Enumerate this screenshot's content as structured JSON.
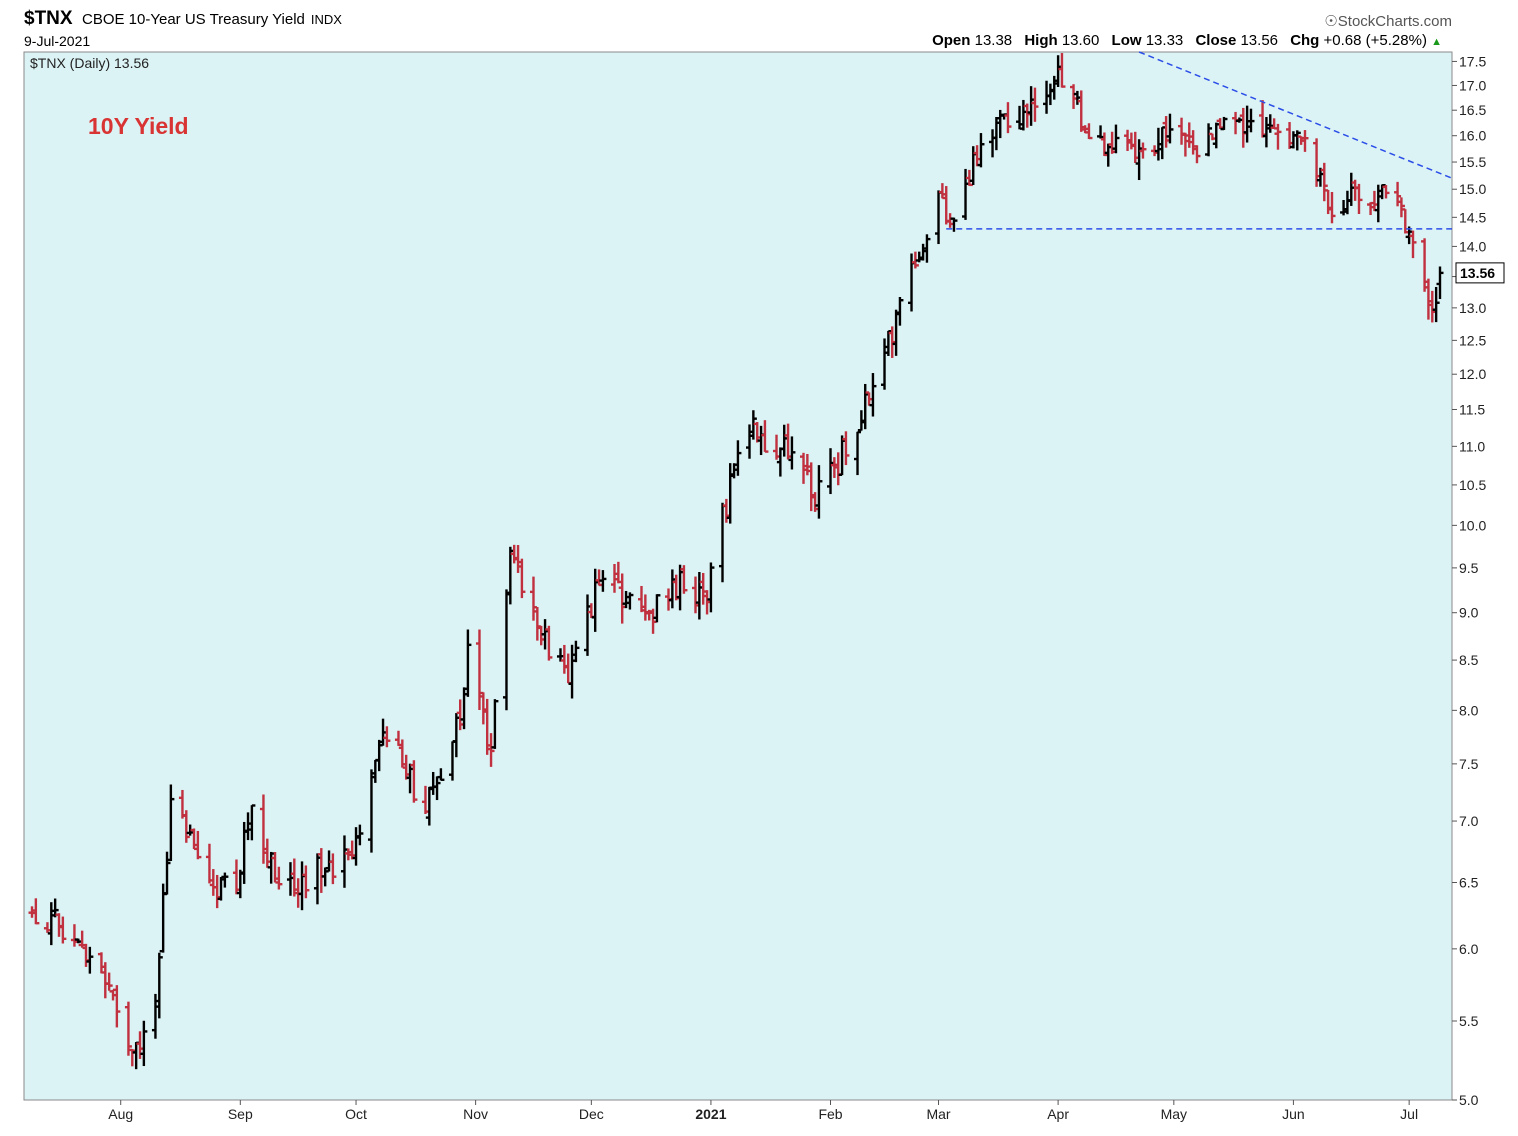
{
  "header": {
    "symbol": "$TNX",
    "description": "CBOE 10-Year US Treasury Yield",
    "exchange": "INDX",
    "date": "9-Jul-2021",
    "brand": "StockCharts.com",
    "open_label": "Open",
    "open": "13.38",
    "high_label": "High",
    "high": "13.60",
    "low_label": "Low",
    "low": "13.33",
    "close_label": "Close",
    "close": "13.56",
    "chg_label": "Chg",
    "chg": "+0.68 (+5.28%)"
  },
  "legend": "$TNX (Daily) 13.56",
  "annotation": "10Y Yield",
  "colors": {
    "background": "#dcf3f5",
    "up": "#000000",
    "down": "#c0303f",
    "trendline": "#2b4ee8",
    "annotation": "#d93434"
  },
  "chart_data": {
    "type": "ohlc",
    "title": "$TNX CBOE 10-Year US Treasury Yield",
    "scale": "log",
    "ylim": [
      5.0,
      17.7
    ],
    "y_ticks": [
      "5.0",
      "5.5",
      "6.0",
      "6.5",
      "7.0",
      "7.5",
      "8.0",
      "8.5",
      "9.0",
      "9.5",
      "10.0",
      "10.5",
      "11.0",
      "11.5",
      "12.0",
      "12.5",
      "13.0",
      "13.5",
      "14.0",
      "14.5",
      "15.0",
      "15.5",
      "16.0",
      "16.5",
      "17.0",
      "17.5"
    ],
    "x_ticks": [
      "Aug",
      "Sep",
      "Oct",
      "Nov",
      "Dec",
      "2021",
      "Feb",
      "Mar",
      "Apr",
      "May",
      "Jun",
      "Jul"
    ],
    "x_tick_dates": [
      "2020-08-01",
      "2020-09-01",
      "2020-10-01",
      "2020-11-01",
      "2020-12-01",
      "2021-01-01",
      "2021-02-01",
      "2021-03-01",
      "2021-04-01",
      "2021-05-01",
      "2021-06-01",
      "2021-07-01"
    ],
    "date_range": [
      "2020-07-09",
      "2021-07-09"
    ],
    "grid": false,
    "last_value": "13.56",
    "anchors": [
      [
        "2020-07-09",
        6.3
      ],
      [
        "2020-07-20",
        6.1
      ],
      [
        "2020-07-28",
        5.8
      ],
      [
        "2020-08-03",
        5.25
      ],
      [
        "2020-08-10",
        5.6
      ],
      [
        "2020-08-14",
        7.1
      ],
      [
        "2020-08-25",
        6.5
      ],
      [
        "2020-08-31",
        6.5
      ],
      [
        "2020-09-04",
        7.2
      ],
      [
        "2020-09-11",
        6.4
      ],
      [
        "2020-09-22",
        6.6
      ],
      [
        "2020-09-30",
        6.7
      ],
      [
        "2020-10-09",
        7.8
      ],
      [
        "2020-10-19",
        7.1
      ],
      [
        "2020-10-28",
        7.9
      ],
      [
        "2020-10-30",
        8.7
      ],
      [
        "2020-11-03",
        7.9
      ],
      [
        "2020-11-05",
        7.6
      ],
      [
        "2020-11-10",
        9.6
      ],
      [
        "2020-11-16",
        8.9
      ],
      [
        "2020-11-25",
        8.4
      ],
      [
        "2020-12-04",
        9.4
      ],
      [
        "2020-12-14",
        8.9
      ],
      [
        "2020-12-23",
        9.3
      ],
      [
        "2020-12-31",
        9.2
      ],
      [
        "2021-01-06",
        10.5
      ],
      [
        "2021-01-12",
        11.2
      ],
      [
        "2021-01-22",
        10.9
      ],
      [
        "2021-01-28",
        10.3
      ],
      [
        "2021-02-05",
        11.0
      ],
      [
        "2021-02-12",
        11.8
      ],
      [
        "2021-02-19",
        13.0
      ],
      [
        "2021-02-25",
        14.0
      ],
      [
        "2021-03-01",
        15.2
      ],
      [
        "2021-03-04",
        14.2
      ],
      [
        "2021-03-12",
        15.8
      ],
      [
        "2021-03-18",
        16.3
      ],
      [
        "2021-03-24",
        16.5
      ],
      [
        "2021-03-31",
        17.2
      ],
      [
        "2021-04-05",
        16.6
      ],
      [
        "2021-04-14",
        15.7
      ],
      [
        "2021-04-23",
        15.6
      ],
      [
        "2021-04-30",
        16.3
      ],
      [
        "2021-05-07",
        15.7
      ],
      [
        "2021-05-14",
        16.4
      ],
      [
        "2021-05-21",
        16.2
      ],
      [
        "2021-05-31",
        15.9
      ],
      [
        "2021-06-04",
        16.0
      ],
      [
        "2021-06-11",
        14.6
      ],
      [
        "2021-06-18",
        15.0
      ],
      [
        "2021-06-25",
        14.9
      ],
      [
        "2021-06-29",
        14.6
      ],
      [
        "2021-07-02",
        14.2
      ],
      [
        "2021-07-07",
        12.9
      ],
      [
        "2021-07-09",
        13.56
      ]
    ],
    "annotations": [
      {
        "type": "trendline",
        "from": [
          "2021-04-22",
          17.7
        ],
        "to": [
          "2021-07-09",
          15.2
        ],
        "style": "dashed"
      },
      {
        "type": "horizontal",
        "y": 14.3,
        "from": "2021-03-03",
        "to": "2021-07-09",
        "style": "dashed"
      }
    ]
  }
}
